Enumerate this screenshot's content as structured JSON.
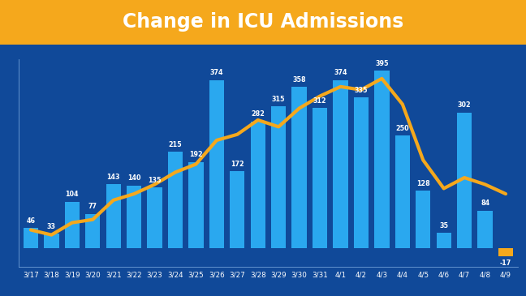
{
  "chart_data": {
    "type": "bar",
    "title": "Change in ICU Admissions",
    "categories": [
      "3/17",
      "3/18",
      "3/19",
      "3/20",
      "3/21",
      "3/22",
      "3/23",
      "3/24",
      "3/25",
      "3/26",
      "3/27",
      "3/28",
      "3/29",
      "3/30",
      "3/31",
      "4/1",
      "4/2",
      "4/3",
      "4/4",
      "4/5",
      "4/6",
      "4/7",
      "4/8",
      "4/9"
    ],
    "series": [
      {
        "type": "bar",
        "data_labels": true,
        "values": [
          46,
          33,
          104,
          77,
          143,
          140,
          135,
          215,
          192,
          374,
          172,
          282,
          315,
          358,
          312,
          374,
          335,
          395,
          250,
          128,
          35,
          302,
          84,
          -17
        ],
        "colors": [
          "#2aa8ef",
          "#2aa8ef",
          "#2aa8ef",
          "#2aa8ef",
          "#2aa8ef",
          "#2aa8ef",
          "#2aa8ef",
          "#2aa8ef",
          "#2aa8ef",
          "#2aa8ef",
          "#2aa8ef",
          "#2aa8ef",
          "#2aa8ef",
          "#2aa8ef",
          "#2aa8ef",
          "#2aa8ef",
          "#2aa8ef",
          "#2aa8ef",
          "#2aa8ef",
          "#2aa8ef",
          "#2aa8ef",
          "#2aa8ef",
          "#2aa8ef",
          "#f5a81c"
        ]
      },
      {
        "type": "line",
        "color": "#f5a81c",
        "values": [
          41,
          30,
          57,
          64,
          107,
          121,
          142,
          169,
          187,
          240,
          253,
          285,
          270,
          311,
          338,
          359,
          352,
          377,
          320,
          196,
          133,
          157,
          142,
          121
        ]
      }
    ],
    "ylim": [
      -40,
      420
    ],
    "yticks": [],
    "tick_labels": "x"
  }
}
